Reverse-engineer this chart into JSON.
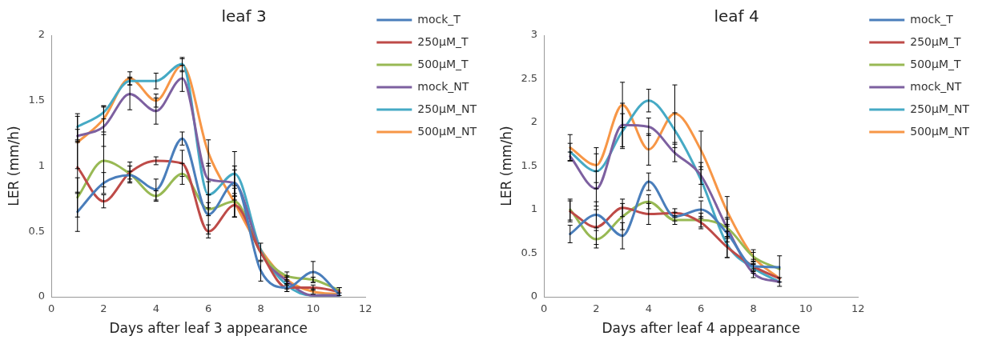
{
  "chart_data": [
    {
      "type": "line",
      "title": "leaf 3",
      "xlabel": "Days after leaf 3 appearance",
      "ylabel": "LER (mm/h)",
      "x": [
        1,
        2,
        3,
        4,
        5,
        6,
        7,
        8,
        9,
        10,
        11
      ],
      "xlim": [
        0,
        12
      ],
      "xticks": [
        0,
        2,
        4,
        6,
        8,
        10,
        12
      ],
      "ylim": [
        0,
        2
      ],
      "yticks": [
        0,
        0.5,
        1,
        1.5,
        2
      ],
      "grid": false,
      "legend": "right",
      "marker": "none",
      "line_style": "solid",
      "series": [
        {
          "name": "mock_T",
          "color": "#4a7ebb",
          "values": [
            0.65,
            0.87,
            0.93,
            0.82,
            1.21,
            0.63,
            0.87,
            0.2,
            0.07,
            0.19,
            0.02
          ],
          "errors": [
            0.15,
            0.08,
            0.03,
            0.08,
            0.05,
            0.15,
            0.13,
            0.08,
            0.03,
            0.08,
            null
          ]
        },
        {
          "name": "250µM_T",
          "color": "#be4b48",
          "values": [
            0.99,
            0.73,
            0.95,
            1.04,
            1.02,
            0.5,
            0.7,
            0.34,
            0.07,
            0.07,
            0.04
          ],
          "errors": [
            0.2,
            0.05,
            0.08,
            0.03,
            0.1,
            0.05,
            0.09,
            null,
            0.03,
            0.02,
            0.03
          ]
        },
        {
          "name": "500µM_T",
          "color": "#98b954",
          "values": [
            0.76,
            1.04,
            0.94,
            0.77,
            0.94,
            0.67,
            0.73,
            0.34,
            0.16,
            0.13,
            0.05
          ],
          "errors": [
            0.15,
            0.2,
            0.06,
            0.04,
            0.08,
            0.05,
            0.12,
            0.07,
            0.03,
            0.02,
            0.02
          ]
        },
        {
          "name": "mock_NT",
          "color": "#7d60a0",
          "values": [
            1.23,
            1.3,
            1.55,
            1.42,
            1.67,
            0.9,
            0.87,
            0.34,
            0.12,
            0.01,
            0.01
          ],
          "errors": [
            0.05,
            0.15,
            0.12,
            0.1,
            0.1,
            0.12,
            0.1,
            null,
            0.03,
            null,
            null
          ]
        },
        {
          "name": "250µM_NT",
          "color": "#46aac5",
          "values": [
            1.3,
            1.41,
            1.65,
            1.65,
            1.78,
            0.78,
            0.94,
            0.36,
            0.09,
            0.01,
            0.01
          ],
          "errors": [
            0.1,
            0.05,
            0.03,
            0.06,
            0.05,
            0.1,
            0.17,
            null,
            0.03,
            null,
            null
          ]
        },
        {
          "name": "500µM_NT",
          "color": "#f79646",
          "values": [
            1.18,
            1.36,
            1.67,
            1.5,
            1.77,
            1.1,
            0.72,
            0.36,
            0.13,
            0.04,
            0.02
          ],
          "errors": [
            0.2,
            0.1,
            0.05,
            0.05,
            0.05,
            0.1,
            0.11,
            null,
            0.03,
            0.02,
            null
          ]
        }
      ]
    },
    {
      "type": "line",
      "title": "leaf 4",
      "xlabel": "Days after leaf 4 appearance",
      "ylabel": "LER (mm/h)",
      "x": [
        1,
        2,
        3,
        4,
        5,
        6,
        7,
        8,
        9
      ],
      "xlim": [
        0,
        12
      ],
      "xticks": [
        0,
        2,
        4,
        6,
        8,
        10,
        12
      ],
      "ylim": [
        0,
        3
      ],
      "yticks": [
        0,
        0.5,
        1,
        1.5,
        2,
        2.5,
        3
      ],
      "grid": false,
      "legend": "right",
      "marker": "none",
      "line_style": "solid",
      "series": [
        {
          "name": "mock_T",
          "color": "#4a7ebb",
          "values": [
            0.72,
            0.94,
            0.7,
            1.32,
            0.92,
            1.0,
            0.73,
            0.35,
            0.34
          ],
          "errors": [
            0.1,
            0.15,
            0.15,
            0.1,
            0.05,
            0.1,
            0.1,
            0.05,
            null
          ]
        },
        {
          "name": "250µM_T",
          "color": "#be4b48",
          "values": [
            0.98,
            0.8,
            1.02,
            0.95,
            0.96,
            0.85,
            0.57,
            0.35,
            0.21
          ],
          "errors": [
            0.12,
            0.2,
            0.1,
            0.12,
            0.05,
            0.07,
            0.12,
            0.08,
            null
          ]
        },
        {
          "name": "500µM_T",
          "color": "#98b954",
          "values": [
            1.0,
            0.66,
            0.92,
            1.09,
            0.88,
            0.88,
            0.79,
            0.46,
            0.32
          ],
          "errors": [
            0.12,
            0.1,
            0.15,
            0.08,
            0.05,
            0.08,
            0.1,
            0.05,
            0.15
          ]
        },
        {
          "name": "mock_NT",
          "color": "#7d60a0",
          "values": [
            1.61,
            1.24,
            1.97,
            1.95,
            1.65,
            1.39,
            0.79,
            0.27,
            0.17
          ],
          "errors": [
            0.05,
            0.2,
            0.25,
            0.1,
            0.1,
            0.1,
            0.12,
            0.05,
            0.05
          ]
        },
        {
          "name": "250µM_NT",
          "color": "#46aac5",
          "values": [
            1.66,
            1.44,
            1.9,
            2.25,
            1.91,
            1.34,
            0.6,
            0.33,
            0.17
          ],
          "errors": [
            0.1,
            0.2,
            0.2,
            0.13,
            0.2,
            0.2,
            0.15,
            0.04,
            null
          ]
        },
        {
          "name": "500µM_NT",
          "color": "#f79646",
          "values": [
            1.71,
            1.51,
            2.2,
            1.69,
            2.1,
            1.68,
            0.98,
            0.46,
            0.21
          ],
          "errors": [
            0.15,
            0.2,
            0.26,
            0.18,
            0.33,
            0.22,
            0.17,
            0.08,
            null
          ]
        }
      ]
    }
  ]
}
